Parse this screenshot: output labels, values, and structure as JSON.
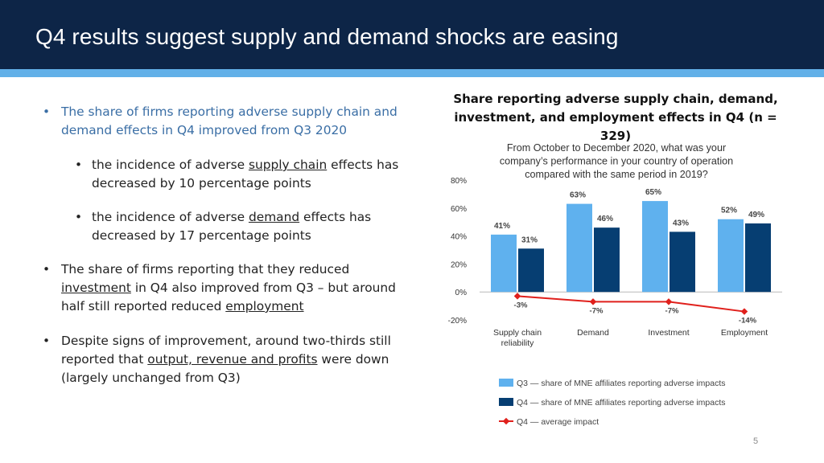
{
  "slide": {
    "title": "Q4 results suggest supply and demand shocks are easing",
    "page_number": "5",
    "colors": {
      "header": "#0d2547",
      "stripe": "#62b0e8",
      "accent_text": "#3a6ea5"
    }
  },
  "bullets": {
    "b1": "The share of firms reporting adverse supply chain and demand effects in Q4 improved from Q3 2020",
    "b1a_pre": "the incidence of adverse ",
    "b1a_u": "supply chain",
    "b1a_post": " effects has decreased by 10 percentage points",
    "b1b_pre": "the incidence of adverse ",
    "b1b_u": "demand",
    "b1b_post": " effects has decreased by 17 percentage points",
    "b2_pre": "The share of firms reporting that they reduced ",
    "b2_u1": "investment",
    "b2_mid": " in Q4 also improved from Q3 – but around half still reported reduced ",
    "b2_u2": "employment",
    "b3_pre": "Despite signs of improvement, around two-thirds still reported that ",
    "b3_u": "output, revenue and profits",
    "b3_post": " were down (largely unchanged from Q3)"
  },
  "chart_heading": "Share reporting adverse supply chain, demand, investment, and employment effects in Q4 (n = 329)",
  "chart_data": {
    "type": "bar",
    "title": [
      "From October to December 2020, what was your",
      "company’s performance in your country of operation",
      "compared with the same period in 2019?"
    ],
    "categories": [
      [
        "Supply chain",
        "reliability"
      ],
      [
        "Demand"
      ],
      [
        "Investment"
      ],
      [
        "Employment"
      ]
    ],
    "ylim": [
      -20,
      80
    ],
    "yticks": [
      80,
      60,
      40,
      20,
      0,
      -20
    ],
    "ytick_labels": [
      "80%",
      "60%",
      "40%",
      "20%",
      "0%",
      "-20%"
    ],
    "series": [
      {
        "name": "Q3 — share of MNE affiliates reporting adverse impacts",
        "type": "bar",
        "color": "#5fb1ee",
        "values": [
          41,
          63,
          65,
          52
        ],
        "labels": [
          "41%",
          "63%",
          "65%",
          "52%"
        ]
      },
      {
        "name": "Q4 — share of MNE affiliates reporting adverse impacts",
        "type": "bar",
        "color": "#063e72",
        "values": [
          31,
          46,
          43,
          49
        ],
        "labels": [
          "31%",
          "46%",
          "43%",
          "49%"
        ]
      },
      {
        "name": "Q4 — average impact",
        "type": "line",
        "color": "#e0201c",
        "values": [
          -3,
          -7,
          -7,
          -14
        ],
        "labels": [
          "-3%",
          "-7%",
          "-7%",
          "-14%"
        ]
      }
    ],
    "grid": false,
    "legend_position": "bottom"
  }
}
